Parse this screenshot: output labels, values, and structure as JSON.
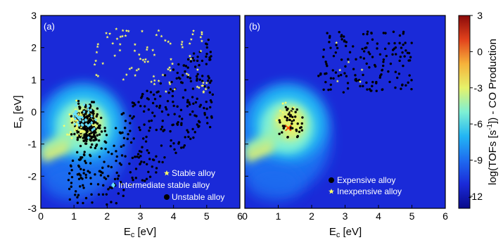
{
  "chart_data": [
    {
      "type": "scatter",
      "panel_label": "(a)",
      "xlabel_main": "E",
      "xlabel_sub": "c",
      "xlabel_unit": " [eV]",
      "ylabel_main": "E",
      "ylabel_sub": "o",
      "ylabel_unit": " [eV]",
      "xlim": [
        0,
        6
      ],
      "ylim": [
        -3,
        3
      ],
      "xticks": [
        "0",
        "1",
        "2",
        "3",
        "4",
        "5",
        "6"
      ],
      "yticks": [
        "-3",
        "-2",
        "-1",
        "0",
        "1",
        "2",
        "3"
      ],
      "background": "heatmap of log(TOF) for CO production",
      "legend_position": "bottom-right",
      "legend": [
        {
          "label": "Stable alloy",
          "marker": "star",
          "color": "#ffff66"
        },
        {
          "label": "Intermediate stable alloy",
          "marker": "diamond",
          "color": "#66e0ff"
        },
        {
          "label": "Unstable alloy",
          "marker": "circle",
          "color": "#000000"
        }
      ]
    },
    {
      "type": "scatter",
      "panel_label": "(b)",
      "xlabel_main": "E",
      "xlabel_sub": "c",
      "xlabel_unit": " [eV]",
      "xlim": [
        0,
        6
      ],
      "ylim": [
        -3,
        3
      ],
      "xticks": [
        "0",
        "1",
        "2",
        "3",
        "4",
        "5",
        "6"
      ],
      "background": "heatmap of log(TOF) for CO production",
      "legend_position": "bottom-right",
      "legend": [
        {
          "label": "Expensive alloy",
          "marker": "circle",
          "color": "#000000"
        },
        {
          "label": "Inexpensive alloy",
          "marker": "star",
          "color": "#ffff66"
        }
      ],
      "marked_point": {
        "x": 1.3,
        "y": -0.5,
        "marker": "x",
        "color": "#ff4400"
      }
    }
  ],
  "colorbar": {
    "label": "log(TOFs [s",
    "label_exp": "-1",
    "label_tail": "]) - CO Production",
    "ticks": [
      "3",
      "0",
      "-3",
      "-6",
      "-9",
      "-12"
    ],
    "range": [
      -13,
      3
    ],
    "colors": [
      "#0a0a8a",
      "#1a2ad8",
      "#1e6cf0",
      "#22b6f4",
      "#7ef0d4",
      "#e6f26a",
      "#f6b23a",
      "#e2421c",
      "#8a0a0a"
    ]
  },
  "colors": {
    "background_low": "#1a2ad8",
    "hot_ridge": "#e6f26a"
  }
}
